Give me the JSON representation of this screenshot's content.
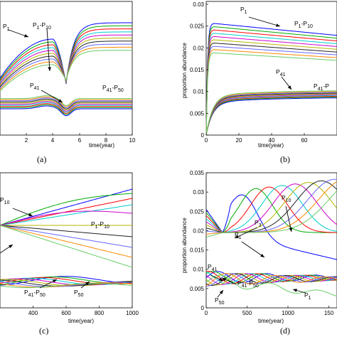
{
  "chart_data": [
    {
      "id": "a",
      "panel_label": "(a)",
      "type": "line",
      "xlabel": "time(year)",
      "ylabel": "",
      "xlim": [
        0,
        10
      ],
      "xticks": [
        "2",
        "4",
        "6",
        "8",
        "10"
      ],
      "yticks": [],
      "ylim": [
        0,
        10
      ],
      "annotations": [
        {
          "main": "P",
          "sub": "1",
          "tail": ""
        },
        {
          "main": "P",
          "sub": "1",
          "tail": "-P",
          "sub2": "10"
        },
        {
          "main": "P",
          "sub": "41",
          "tail": ""
        },
        {
          "main": "P",
          "sub": "41",
          "tail": "-P",
          "sub2": "50"
        }
      ]
    },
    {
      "id": "b",
      "panel_label": "(b)",
      "type": "line",
      "xlabel": "time(year)",
      "ylabel": "proportion abundance",
      "xlim": [
        0,
        80
      ],
      "ylim": [
        0,
        0.03
      ],
      "xticks": [
        "0",
        "20",
        "40",
        "60"
      ],
      "yticks": [
        "0",
        "0.005",
        "0.01",
        "0.015",
        "0.02",
        "0.025",
        "0.03"
      ],
      "annotations": [
        {
          "main": "P",
          "sub": "1",
          "tail": ""
        },
        {
          "main": "P",
          "sub": "1",
          "tail": "-P",
          "sub2": "10"
        },
        {
          "main": "P",
          "sub": "41",
          "tail": ""
        },
        {
          "main": "P",
          "sub": "41",
          "tail": "-P",
          "sub2": ""
        }
      ]
    },
    {
      "id": "c",
      "panel_label": "(c)",
      "type": "line",
      "xlabel": "time(year)",
      "ylabel": "",
      "xlim": [
        200,
        1000
      ],
      "ylim": [
        0,
        10
      ],
      "xticks": [
        "400",
        "600",
        "800",
        "1000"
      ],
      "yticks": [],
      "annotations": [
        {
          "main": "P",
          "sub": "10",
          "tail": ""
        },
        {
          "main": "P",
          "sub": "1",
          "tail": "-P",
          "sub2": "10"
        },
        {
          "main": "P",
          "sub": "41",
          "tail": "-P",
          "sub2": "50"
        },
        {
          "main": "P",
          "sub": "50",
          "tail": ""
        }
      ]
    },
    {
      "id": "d",
      "panel_label": "(d)",
      "type": "line",
      "xlabel": "time(year)",
      "ylabel": "proportion abundance",
      "xlim": [
        0,
        1600
      ],
      "ylim": [
        0,
        0.035
      ],
      "xticks": [
        "0",
        "500",
        "1000",
        "150"
      ],
      "yticks": [
        "0",
        "0.005",
        "0.01",
        "0.015",
        "0.02",
        "0.025",
        "0.03",
        "0.035"
      ],
      "annotations": [
        {
          "main": "P",
          "sub": "10",
          "tail": ""
        },
        {
          "main": "P",
          "sub": "3",
          "tail": ""
        },
        {
          "main": "P",
          "sub": "1",
          "tail": ""
        },
        {
          "main": "P",
          "sub": "41",
          "tail": ""
        },
        {
          "main": "P",
          "sub": "41",
          "tail": "-P",
          "sub2": "50"
        },
        {
          "main": "P",
          "sub": "50",
          "tail": ""
        },
        {
          "main": "P",
          "sub": "1",
          "tail": ""
        }
      ]
    }
  ],
  "colors": {
    "series": [
      "#0000ff",
      "#00aa00",
      "#ff0000",
      "#00cccc",
      "#cc00cc",
      "#b5b500",
      "#222222",
      "#6666ff",
      "#ff8800",
      "#66cc66"
    ]
  }
}
